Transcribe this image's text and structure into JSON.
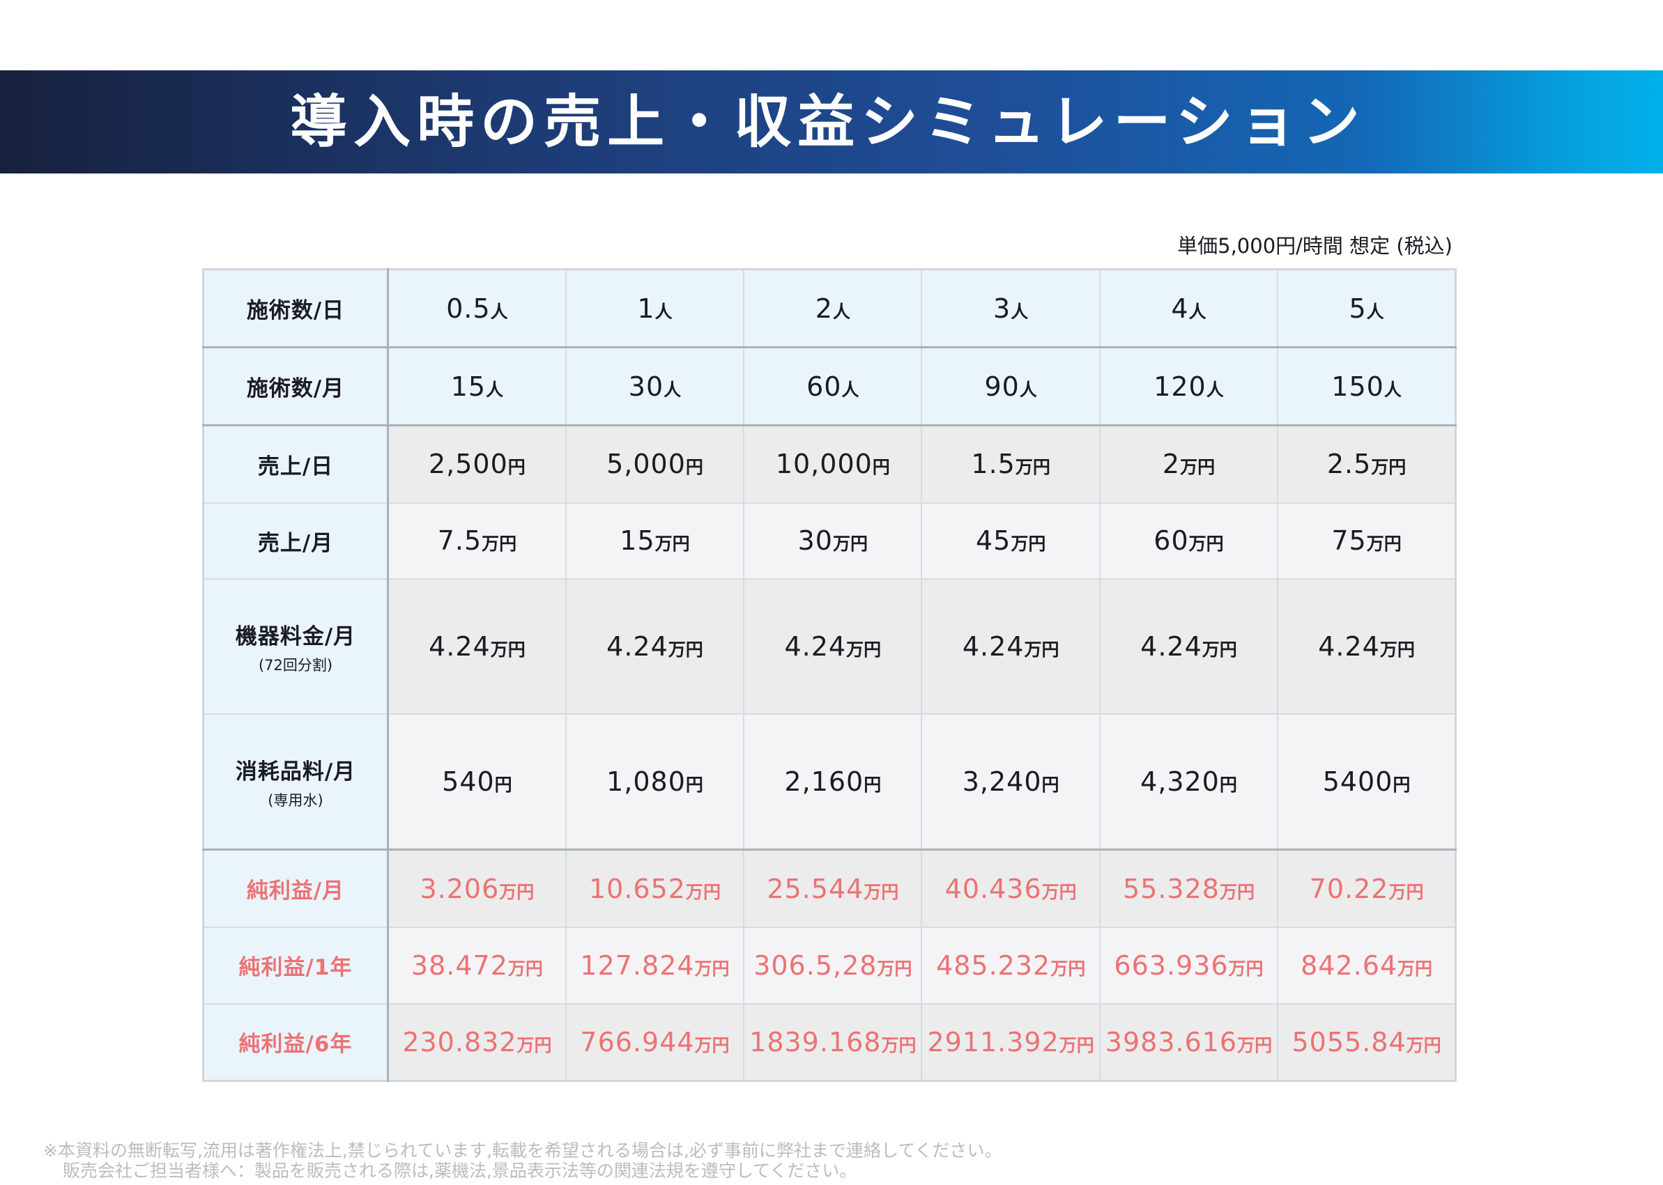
{
  "header": {
    "title": "導入時の売上・収益シミュレーション"
  },
  "unit_note": "単価5,000円/時間 想定 (税込)",
  "table": {
    "rows": [
      {
        "label": "施術数/日",
        "sub": "",
        "unit": "人",
        "values": [
          "0.5",
          "1",
          "2",
          "3",
          "4",
          "5"
        ]
      },
      {
        "label": "施術数/月",
        "sub": "",
        "unit": "人",
        "values": [
          "15",
          "30",
          "60",
          "90",
          "120",
          "150"
        ]
      },
      {
        "label": "売上/日",
        "sub": "",
        "units": [
          "円",
          "円",
          "円",
          "万円",
          "万円",
          "万円"
        ],
        "values": [
          "2,500",
          "5,000",
          "10,000",
          "1.5",
          "2",
          "2.5"
        ]
      },
      {
        "label": "売上/月",
        "sub": "",
        "unit": "万円",
        "values": [
          "7.5",
          "15",
          "30",
          "45",
          "60",
          "75"
        ]
      },
      {
        "label": "機器料金/月",
        "sub": "(72回分割)",
        "unit": "万円",
        "values": [
          "4.24",
          "4.24",
          "4.24",
          "4.24",
          "4.24",
          "4.24"
        ]
      },
      {
        "label": "消耗品料/月",
        "sub": "(専用水)",
        "unit": "円",
        "values": [
          "540",
          "1,080",
          "2,160",
          "3,240",
          "4,320",
          "5400"
        ]
      },
      {
        "label": "純利益/月",
        "sub": "",
        "unit": "万円",
        "values": [
          "3.206",
          "10.652",
          "25.544",
          "40.436",
          "55.328",
          "70.22"
        ]
      },
      {
        "label": "純利益/1年",
        "sub": "",
        "unit": "万円",
        "values": [
          "38.472",
          "127.824",
          "306.5,28",
          "485.232",
          "663.936",
          "842.64"
        ]
      },
      {
        "label": "純利益/6年",
        "sub": "",
        "unit": "万円",
        "values": [
          "230.832",
          "766.944",
          "1839.168",
          "2911.392",
          "3983.616",
          "5055.84"
        ]
      }
    ]
  },
  "footer": {
    "line1": "※本資料の無断転写,流用は著作権法上,禁じられています,転載を希望される場合は,必ず事前に弊社まで連絡してください。",
    "line2": "販売会社ご担当者様へ：製品を販売される際は,薬機法,景品表示法等の関連法規を遵守してください。"
  }
}
